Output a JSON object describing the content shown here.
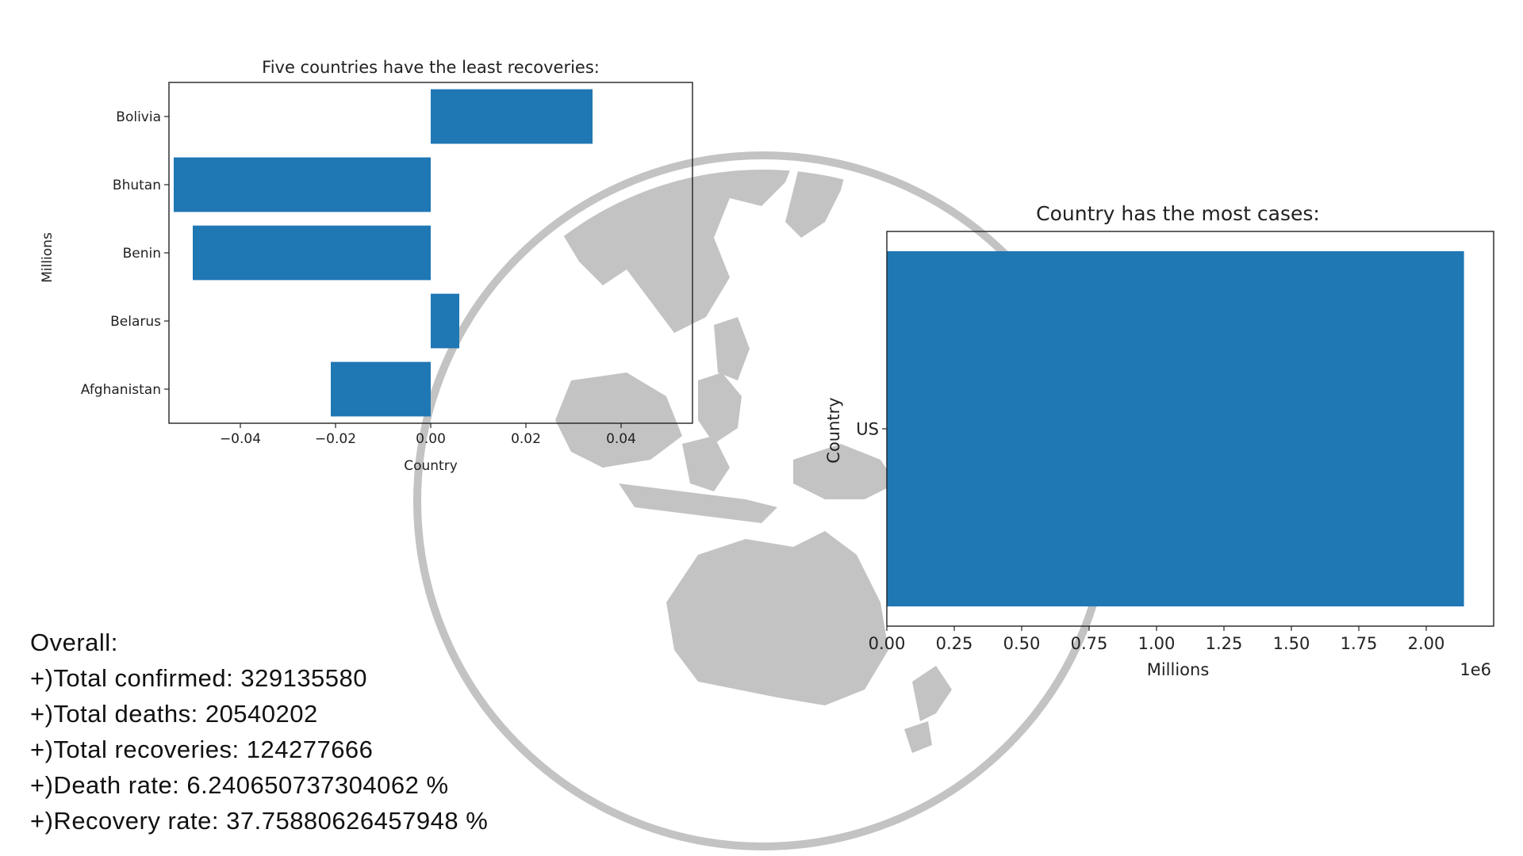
{
  "stats": {
    "heading": "Overall:",
    "lines": [
      "+)Total confirmed: 329135580",
      "+)Total deaths: 20540202",
      "+)Total recoveries: 124277666",
      "+)Death rate: 6.240650737304062 %",
      "+)Recovery rate: 37.75880626457948 %"
    ]
  },
  "colors": {
    "bar": "#1f77b4",
    "globe": "#c3c3c3"
  },
  "chart_data": [
    {
      "type": "bar",
      "orientation": "horizontal",
      "title": "Five countries have the least recoveries:",
      "xlabel": "Country",
      "ylabel": "Millions",
      "categories": [
        "Afghanistan",
        "Belarus",
        "Benin",
        "Bhutan",
        "Bolivia"
      ],
      "values": [
        -0.021,
        0.006,
        -0.05,
        -0.054,
        0.034
      ],
      "xlim": [
        -0.055,
        0.055
      ],
      "xticks": [
        -0.04,
        -0.02,
        0.0,
        0.02,
        0.04
      ],
      "xtick_labels": [
        "−0.04",
        "−0.02",
        "0.00",
        "0.02",
        "0.04"
      ],
      "grid": false
    },
    {
      "type": "bar",
      "orientation": "horizontal",
      "title": "Country has the most cases:",
      "xlabel": "Millions",
      "ylabel": "Country",
      "categories": [
        "US"
      ],
      "values": [
        2140000
      ],
      "xlim": [
        0,
        2250000
      ],
      "xticks": [
        0,
        250000,
        500000,
        750000,
        1000000,
        1250000,
        1500000,
        1750000,
        2000000
      ],
      "xtick_labels": [
        "0.00",
        "0.25",
        "0.50",
        "0.75",
        "1.00",
        "1.25",
        "1.50",
        "1.75",
        "2.00"
      ],
      "offset_text": "1e6",
      "grid": false
    }
  ]
}
